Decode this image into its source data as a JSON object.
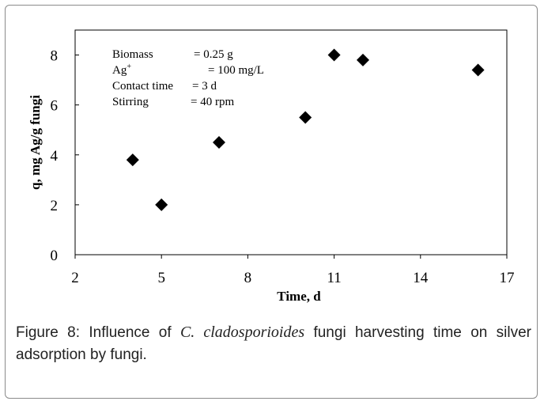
{
  "chart_data": {
    "type": "scatter",
    "xlabel": "Time, d",
    "ylabel": "q, mg Ag/g fungi",
    "xlim": [
      2,
      17
    ],
    "ylim": [
      0,
      9
    ],
    "xticks": [
      2,
      5,
      8,
      11,
      14,
      17
    ],
    "yticks": [
      0,
      2,
      4,
      6,
      8
    ],
    "grid": false,
    "marker": "diamond",
    "marker_color": "#000000",
    "points": [
      {
        "x": 4,
        "y": 3.8
      },
      {
        "x": 5,
        "y": 2.0
      },
      {
        "x": 7,
        "y": 4.5
      },
      {
        "x": 10,
        "y": 5.5
      },
      {
        "x": 11,
        "y": 8.0
      },
      {
        "x": 12,
        "y": 7.8
      },
      {
        "x": 16,
        "y": 7.4
      }
    ],
    "annotations": [
      {
        "label": "Biomass",
        "value": "= 0.25 g"
      },
      {
        "label": "Ag",
        "sup": "+",
        "value": "= 100 mg/L"
      },
      {
        "label": "Contact time",
        "value": "= 3 d"
      },
      {
        "label": "Stirring",
        "value": "= 40 rpm"
      }
    ]
  },
  "caption": {
    "label": "Figure 8:",
    "text_before": " Influence of ",
    "species": "C. cladosporioides",
    "text_after": " fungi harvesting time on silver adsorption by fungi."
  }
}
